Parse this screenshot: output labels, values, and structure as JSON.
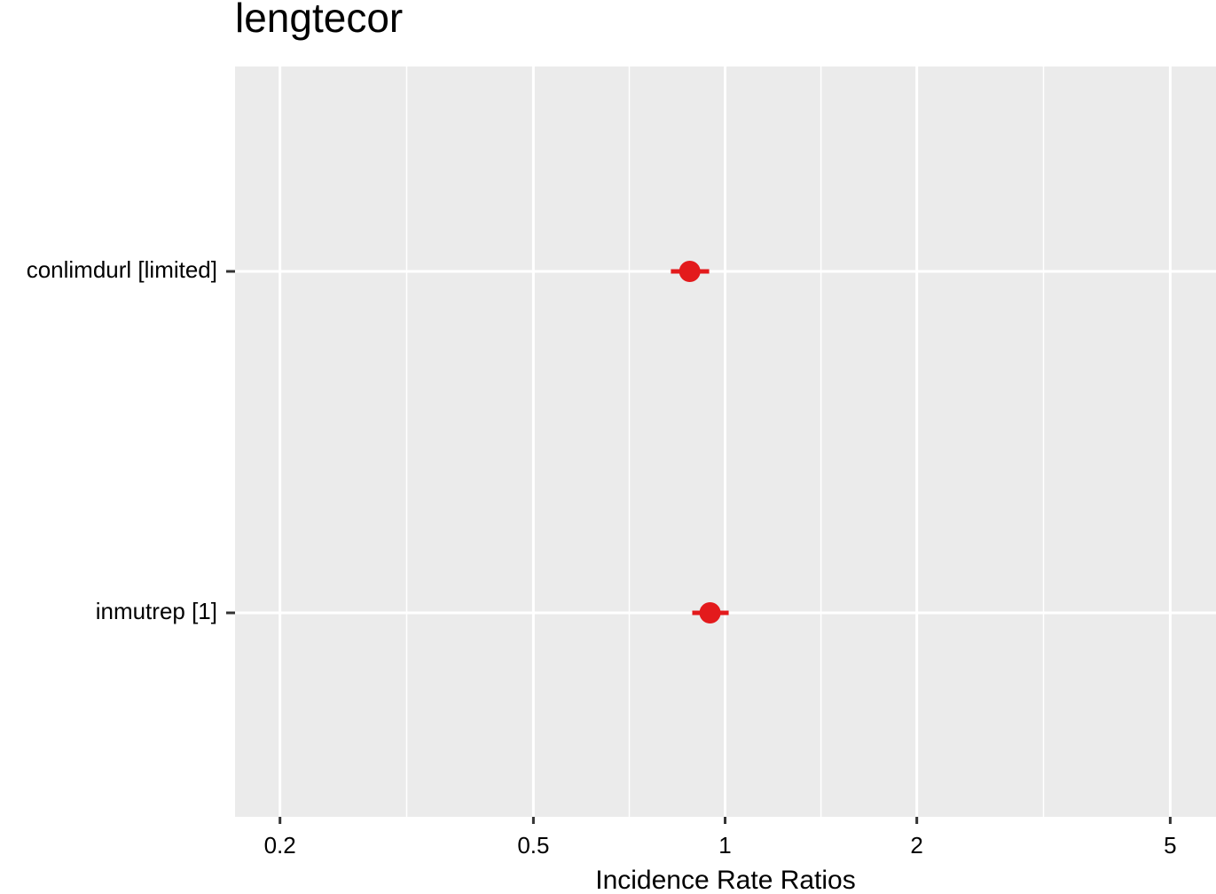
{
  "chart_data": {
    "type": "forest",
    "title": "lengtecor",
    "x_label": "Incidence Rate Ratios",
    "categories": [
      "conlimdurl [limited]",
      "inmutrep [1]"
    ],
    "values": [
      0.88,
      0.947
    ],
    "ci_low": [
      0.822,
      0.888
    ],
    "ci_high": [
      0.944,
      1.013
    ],
    "color": "#e31a1c",
    "log_x": true,
    "xlim": [
      0.17,
      5.9
    ],
    "xticks": [
      0.2,
      0.5,
      1,
      2,
      5
    ],
    "grid": true
  }
}
